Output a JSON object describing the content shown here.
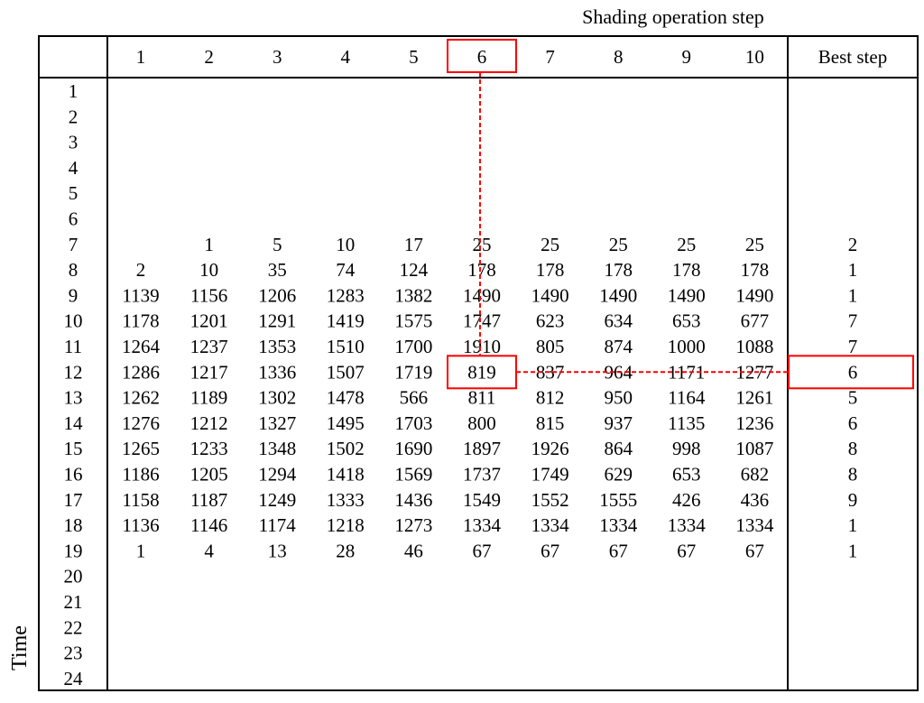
{
  "header": {
    "title": "Shading operation  step",
    "steps": [
      "1",
      "2",
      "3",
      "4",
      "5",
      "6",
      "7",
      "8",
      "9",
      "10"
    ],
    "best_step_label": "Best step"
  },
  "axis": {
    "time_label": "Time"
  },
  "rows": [
    {
      "time": "1",
      "values": [
        "",
        "",
        "",
        "",
        "",
        "",
        "",
        "",
        "",
        ""
      ],
      "best": ""
    },
    {
      "time": "2",
      "values": [
        "",
        "",
        "",
        "",
        "",
        "",
        "",
        "",
        "",
        ""
      ],
      "best": ""
    },
    {
      "time": "3",
      "values": [
        "",
        "",
        "",
        "",
        "",
        "",
        "",
        "",
        "",
        ""
      ],
      "best": ""
    },
    {
      "time": "4",
      "values": [
        "",
        "",
        "",
        "",
        "",
        "",
        "",
        "",
        "",
        ""
      ],
      "best": ""
    },
    {
      "time": "5",
      "values": [
        "",
        "",
        "",
        "",
        "",
        "",
        "",
        "",
        "",
        ""
      ],
      "best": ""
    },
    {
      "time": "6",
      "values": [
        "",
        "",
        "",
        "",
        "",
        "",
        "",
        "",
        "",
        ""
      ],
      "best": ""
    },
    {
      "time": "7",
      "values": [
        "",
        "1",
        "5",
        "10",
        "17",
        "25",
        "25",
        "25",
        "25",
        "25"
      ],
      "best": "2"
    },
    {
      "time": "8",
      "values": [
        "2",
        "10",
        "35",
        "74",
        "124",
        "178",
        "178",
        "178",
        "178",
        "178"
      ],
      "best": "1"
    },
    {
      "time": "9",
      "values": [
        "1139",
        "1156",
        "1206",
        "1283",
        "1382",
        "1490",
        "1490",
        "1490",
        "1490",
        "1490"
      ],
      "best": "1"
    },
    {
      "time": "10",
      "values": [
        "1178",
        "1201",
        "1291",
        "1419",
        "1575",
        "1747",
        "623",
        "634",
        "653",
        "677"
      ],
      "best": "7"
    },
    {
      "time": "11",
      "values": [
        "1264",
        "1237",
        "1353",
        "1510",
        "1700",
        "1910",
        "805",
        "874",
        "1000",
        "1088"
      ],
      "best": "7"
    },
    {
      "time": "12",
      "values": [
        "1286",
        "1217",
        "1336",
        "1507",
        "1719",
        "819",
        "837",
        "964",
        "1171",
        "1277"
      ],
      "best": "6"
    },
    {
      "time": "13",
      "values": [
        "1262",
        "1189",
        "1302",
        "1478",
        "566",
        "811",
        "812",
        "950",
        "1164",
        "1261"
      ],
      "best": "5"
    },
    {
      "time": "14",
      "values": [
        "1276",
        "1212",
        "1327",
        "1495",
        "1703",
        "800",
        "815",
        "937",
        "1135",
        "1236"
      ],
      "best": "6"
    },
    {
      "time": "15",
      "values": [
        "1265",
        "1233",
        "1348",
        "1502",
        "1690",
        "1897",
        "1926",
        "864",
        "998",
        "1087"
      ],
      "best": "8"
    },
    {
      "time": "16",
      "values": [
        "1186",
        "1205",
        "1294",
        "1418",
        "1569",
        "1737",
        "1749",
        "629",
        "653",
        "682"
      ],
      "best": "8"
    },
    {
      "time": "17",
      "values": [
        "1158",
        "1187",
        "1249",
        "1333",
        "1436",
        "1549",
        "1552",
        "1555",
        "426",
        "436"
      ],
      "best": "9"
    },
    {
      "time": "18",
      "values": [
        "1136",
        "1146",
        "1174",
        "1218",
        "1273",
        "1334",
        "1334",
        "1334",
        "1334",
        "1334"
      ],
      "best": "1"
    },
    {
      "time": "19",
      "values": [
        "1",
        "4",
        "13",
        "28",
        "46",
        "67",
        "67",
        "67",
        "67",
        "67"
      ],
      "best": "1"
    },
    {
      "time": "20",
      "values": [
        "",
        "",
        "",
        "",
        "",
        "",
        "",
        "",
        "",
        ""
      ],
      "best": ""
    },
    {
      "time": "21",
      "values": [
        "",
        "",
        "",
        "",
        "",
        "",
        "",
        "",
        "",
        ""
      ],
      "best": ""
    },
    {
      "time": "22",
      "values": [
        "",
        "",
        "",
        "",
        "",
        "",
        "",
        "",
        "",
        ""
      ],
      "best": ""
    },
    {
      "time": "23",
      "values": [
        "",
        "",
        "",
        "",
        "",
        "",
        "",
        "",
        "",
        ""
      ],
      "best": ""
    },
    {
      "time": "24",
      "values": [
        "",
        "",
        "",
        "",
        "",
        "",
        "",
        "",
        "",
        ""
      ],
      "best": ""
    }
  ],
  "highlight": {
    "step": "6",
    "time": "12",
    "value": "819",
    "best": "6",
    "color": "#ff0000"
  }
}
